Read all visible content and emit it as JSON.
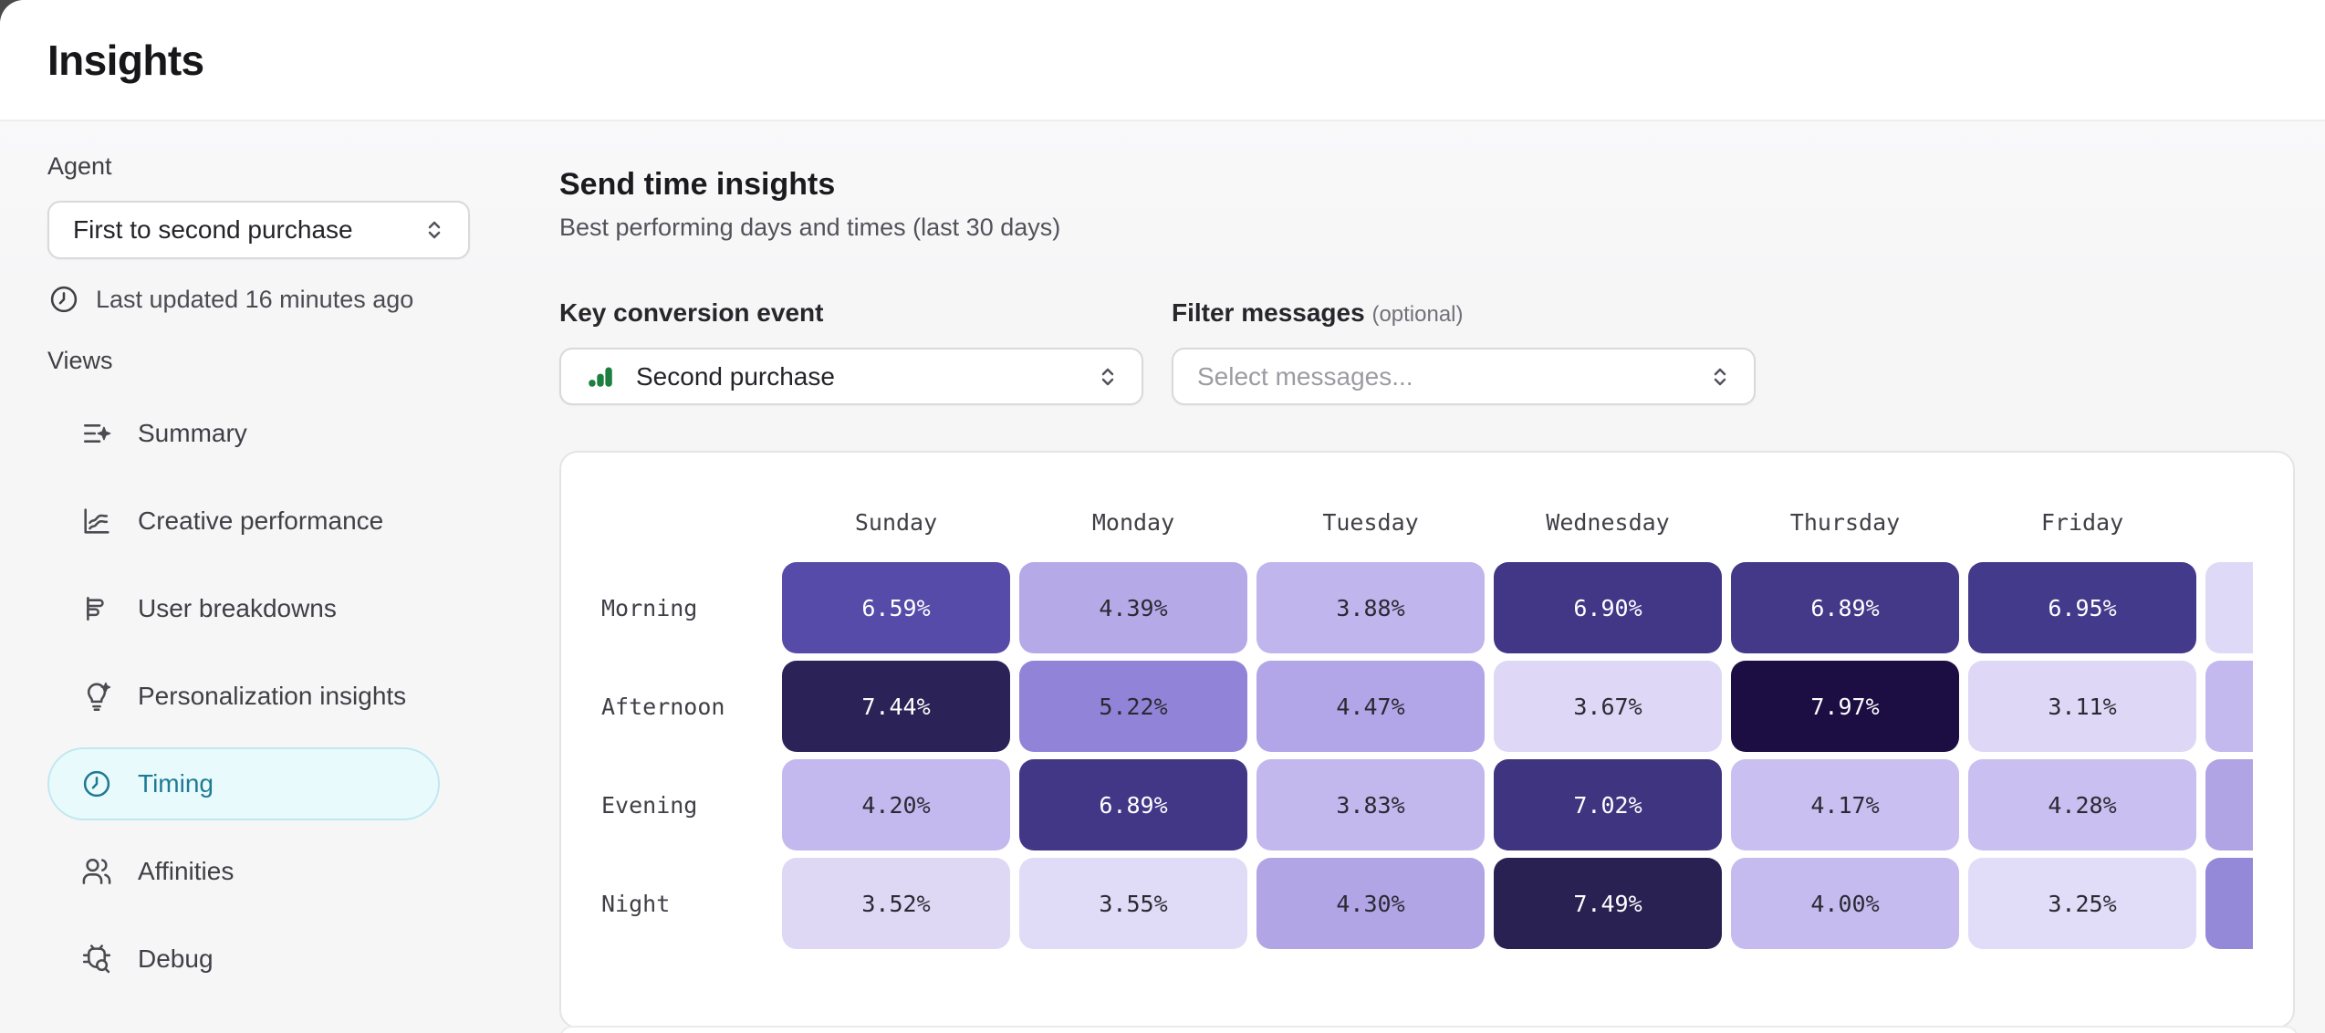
{
  "window": {
    "title": "Insights"
  },
  "sidebar": {
    "agent_label": "Agent",
    "agent_select": {
      "value": "First to second purchase"
    },
    "last_updated": "Last updated 16 minutes ago",
    "views_label": "Views",
    "items": [
      {
        "id": "summary",
        "label": "Summary",
        "icon": "summary-sparkle-icon",
        "active": false
      },
      {
        "id": "creative-performance",
        "label": "Creative performance",
        "icon": "line-chart-icon",
        "active": false
      },
      {
        "id": "user-breakdowns",
        "label": "User breakdowns",
        "icon": "horizontal-bars-icon",
        "active": false
      },
      {
        "id": "personalization-insights",
        "label": "Personalization insights",
        "icon": "lightbulb-sparkle-icon",
        "active": false
      },
      {
        "id": "timing",
        "label": "Timing",
        "icon": "clock-icon",
        "active": true
      },
      {
        "id": "affinities",
        "label": "Affinities",
        "icon": "users-icon",
        "active": false
      },
      {
        "id": "debug",
        "label": "Debug",
        "icon": "bug-search-icon",
        "active": false
      }
    ]
  },
  "main": {
    "section_title": "Send time insights",
    "section_subtitle": "Best performing days and times (last 30 days)",
    "key_event_label": "Key conversion event",
    "key_event_select": {
      "value": "Second purchase",
      "icon": "green-bars-icon"
    },
    "filter_label": "Filter messages",
    "filter_label_suffix": "(optional)",
    "filter_select": {
      "placeholder": "Select messages..."
    }
  },
  "colors": {
    "accent_teal": "#1d7b94",
    "active_pill_bg": "#e9fafd",
    "active_pill_border": "#c0e8f1",
    "green_icon": "#1d7f3f",
    "heat_dark_text": "#ffffff",
    "heat_light_text": "#2a2a33"
  },
  "chart_data": {
    "type": "heatmap",
    "title": "Send time insights",
    "columns": [
      "Sunday",
      "Monday",
      "Tuesday",
      "Wednesday",
      "Thursday",
      "Friday"
    ],
    "rows": [
      "Morning",
      "Afternoon",
      "Evening",
      "Night"
    ],
    "values": [
      [
        6.59,
        4.39,
        3.88,
        6.9,
        6.89,
        6.95
      ],
      [
        7.44,
        5.22,
        4.47,
        3.67,
        7.97,
        3.11
      ],
      [
        4.2,
        6.89,
        3.83,
        7.02,
        4.17,
        4.28
      ],
      [
        3.52,
        3.55,
        4.3,
        7.49,
        4.0,
        3.25
      ]
    ],
    "cell_colors": [
      [
        "#564ba8",
        "#b5a9e8",
        "#c0b5ec",
        "#423787",
        "#433988",
        "#443a8b"
      ],
      [
        "#2b2357",
        "#9184d8",
        "#b2a6e8",
        "#ded7f5",
        "#1c0e42",
        "#ded7f5"
      ],
      [
        "#c4b9ee",
        "#423787",
        "#c2b8ed",
        "#3f3480",
        "#c9bff0",
        "#c9bff0"
      ],
      [
        "#ded8f5",
        "#e0dbf6",
        "#b1a5e6",
        "#2a2153",
        "#c5bbee",
        "#e1dcf7"
      ]
    ],
    "clipped_column_colors": [
      "#ded9f6",
      "#c3b9ee",
      "#b0a4e5",
      "#9488d9"
    ],
    "value_suffix": "%"
  }
}
